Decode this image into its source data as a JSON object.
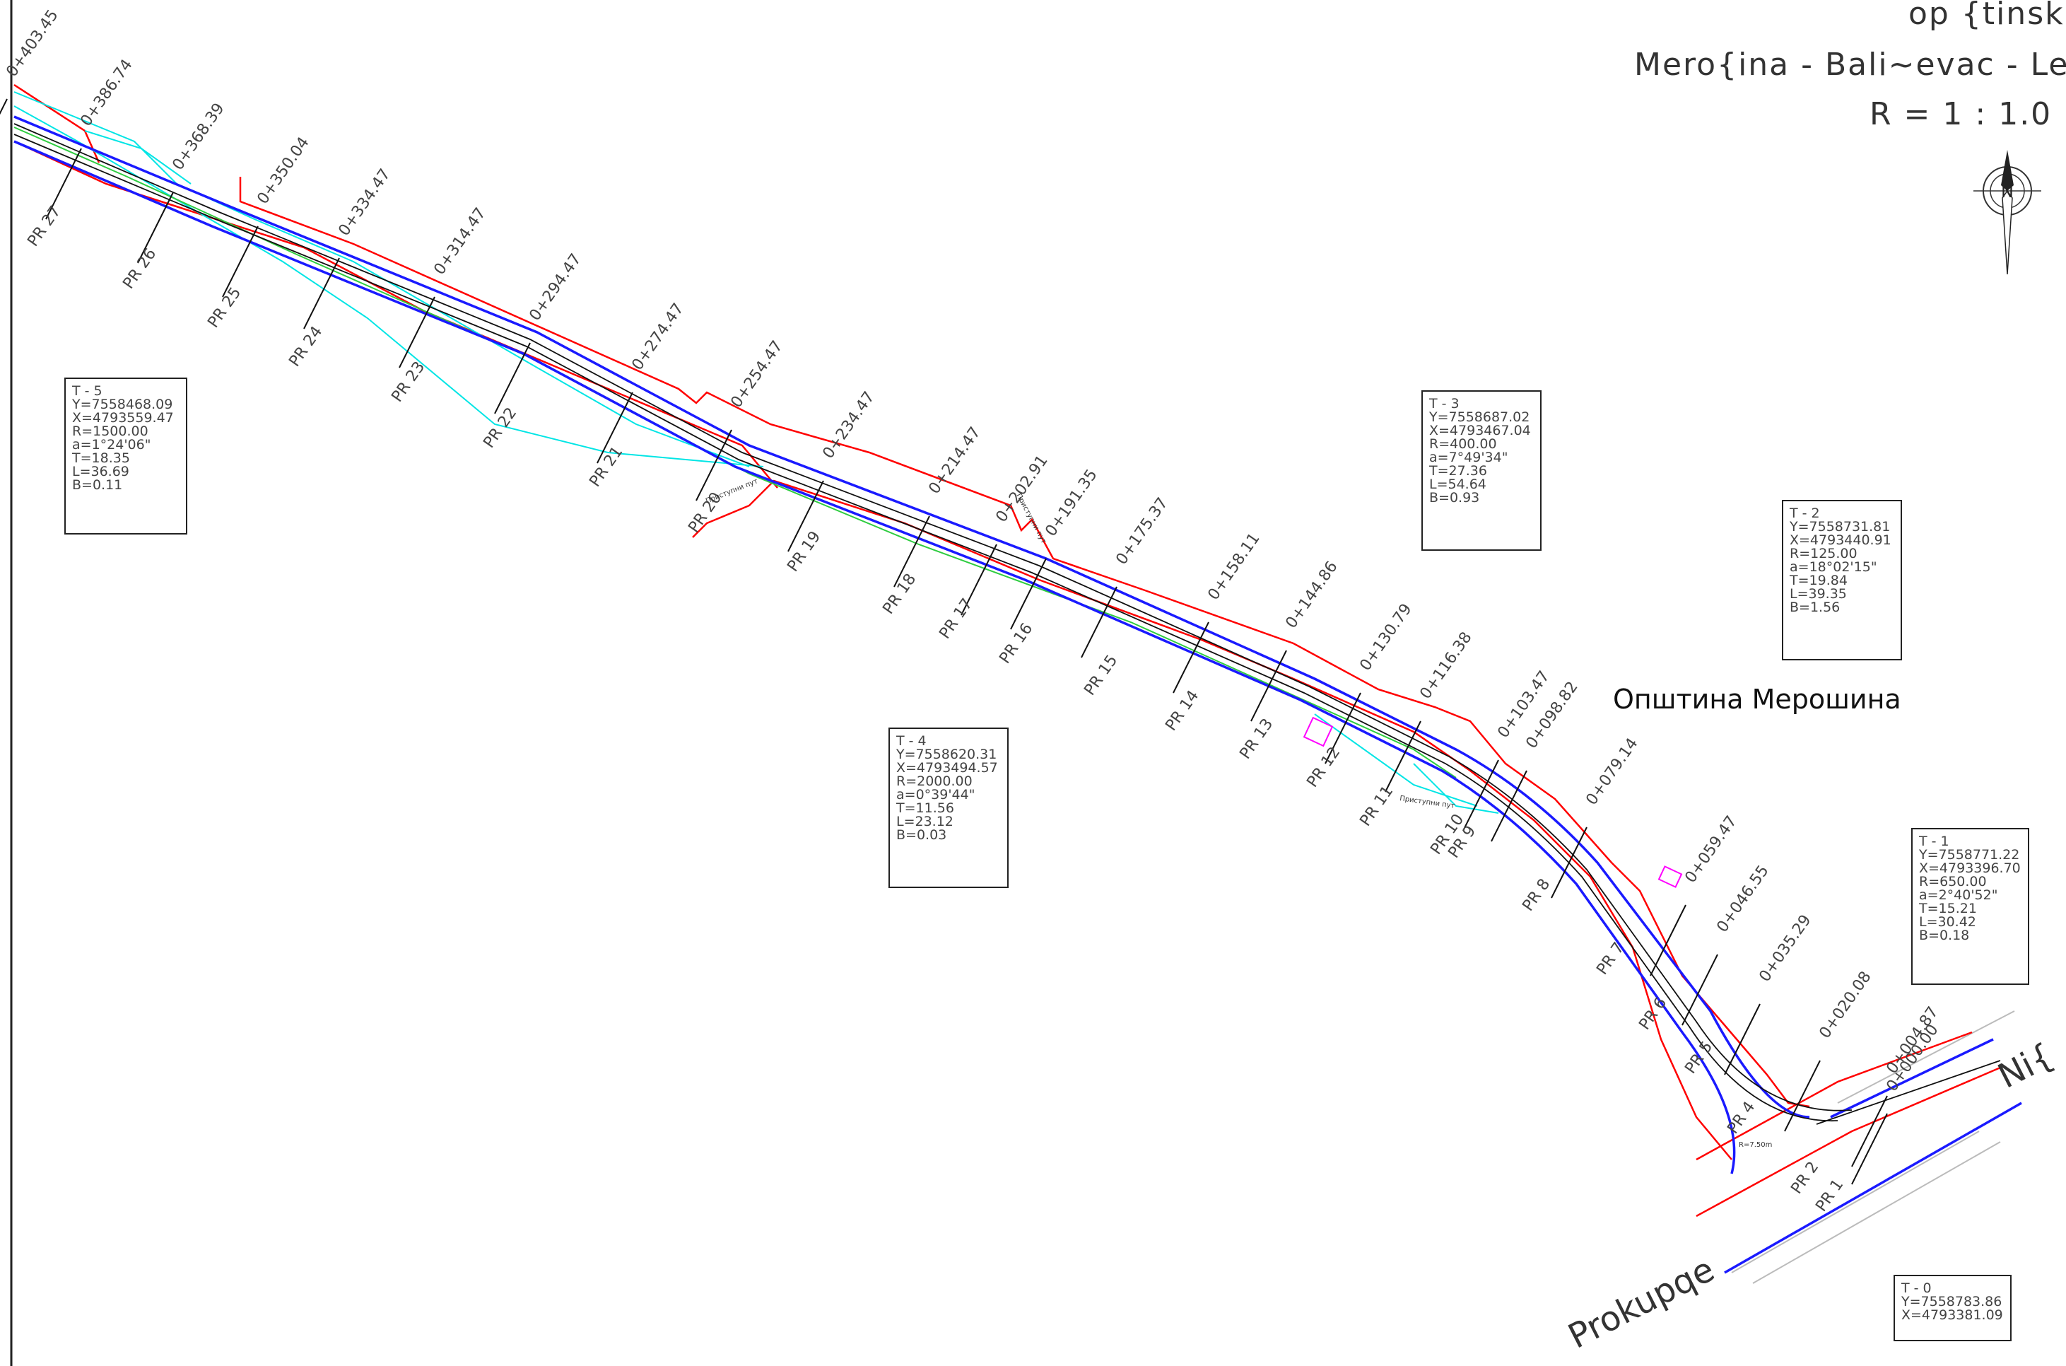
{
  "header": {
    "line1": "op {tinsk",
    "line2": "Mero{ina - Bali~evac - Lepaj",
    "line3": "R  =  1  :  1.0"
  },
  "compass_letter": "N",
  "municipality": "Општина Мерошина",
  "direction_left": "Prokupqe",
  "direction_right": "Ni{",
  "access_road": "Приступни пут",
  "radius_label": "R=7.50m",
  "colors": {
    "axis": "#111111",
    "road_edge": "#1a1aff",
    "boundary": "#ff0000",
    "cyan": "#00e5e5",
    "green": "#2ecc40",
    "magenta": "#ff00ff"
  },
  "stations": [
    {
      "label": "0+000.00"
    },
    {
      "label": "0+004.87"
    },
    {
      "label": "0+020.08"
    },
    {
      "label": "0+035.29"
    },
    {
      "label": "0+046.55"
    },
    {
      "label": "0+059.47"
    },
    {
      "label": "0+079.14"
    },
    {
      "label": "0+098.82"
    },
    {
      "label": "0+103.47"
    },
    {
      "label": "0+116.38"
    },
    {
      "label": "0+130.79"
    },
    {
      "label": "0+144.86"
    },
    {
      "label": "0+158.11"
    },
    {
      "label": "0+175.37"
    },
    {
      "label": "0+191.35"
    },
    {
      "label": "0+202.91"
    },
    {
      "label": "0+214.47"
    },
    {
      "label": "0+234.47"
    },
    {
      "label": "0+254.47"
    },
    {
      "label": "0+274.47"
    },
    {
      "label": "0+294.47"
    },
    {
      "label": "0+314.47"
    },
    {
      "label": "0+334.47"
    },
    {
      "label": "0+350.04"
    },
    {
      "label": "0+368.39"
    },
    {
      "label": "0+386.74"
    },
    {
      "label": "0+403.45"
    }
  ],
  "profiles": [
    "PR 1",
    "PR 2",
    "PR 4",
    "PR 5",
    "PR 6",
    "PR 7",
    "PR 8",
    "PR 9",
    "PR 10",
    "PR 11",
    "PR 12",
    "PR 13",
    "PR 14",
    "PR 15",
    "PR 16",
    "PR 17",
    "PR 18",
    "PR 19",
    "PR 20",
    "PR 21",
    "PR 22",
    "PR 23",
    "PR 24",
    "PR 25",
    "PR 26",
    "PR 27"
  ],
  "tangent_boxes": [
    {
      "id": "T - 0",
      "lines": [
        "Y=7558783.86",
        "X=4793381.09"
      ]
    },
    {
      "id": "T - 1",
      "lines": [
        "Y=7558771.22",
        "X=4793396.70",
        "R=650.00",
        "a=2°40'52\"",
        "T=15.21",
        "L=30.42",
        "B=0.18"
      ]
    },
    {
      "id": "T - 2",
      "lines": [
        "Y=7558731.81",
        "X=4793440.91",
        "R=125.00",
        "a=18°02'15\"",
        "T=19.84",
        "L=39.35",
        "B=1.56"
      ]
    },
    {
      "id": "T - 3",
      "lines": [
        "Y=7558687.02",
        "X=4793467.04",
        "R=400.00",
        "a=7°49'34\"",
        "T=27.36",
        "L=54.64",
        "B=0.93"
      ]
    },
    {
      "id": "T - 4",
      "lines": [
        "Y=7558620.31",
        "X=4793494.57",
        "R=2000.00",
        "a=0°39'44\"",
        "T=11.56",
        "L=23.12",
        "B=0.03"
      ]
    },
    {
      "id": "T - 5",
      "lines": [
        "Y=7558468.09",
        "X=4793559.47",
        "R=1500.00",
        "a=1°24'06\"",
        "T=18.35",
        "L=36.69",
        "B=0.11"
      ]
    }
  ]
}
